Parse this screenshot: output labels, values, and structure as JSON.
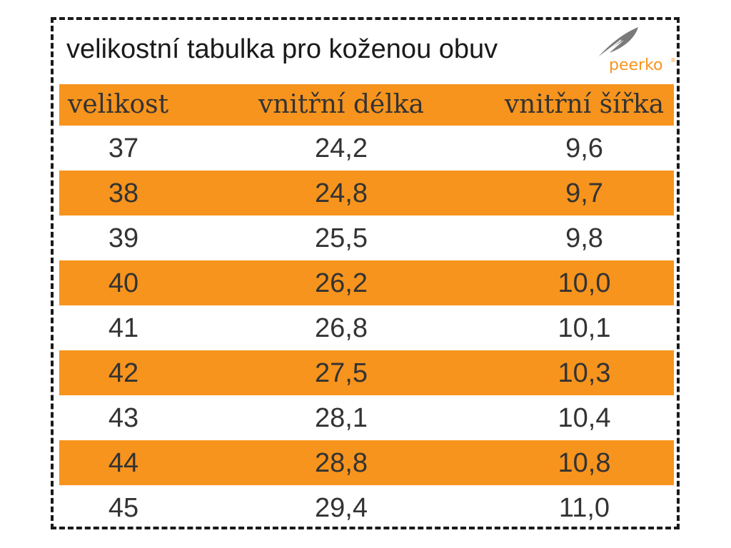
{
  "title": "velikostní tabulka pro koženou obuv",
  "logo": {
    "text": "peerko",
    "reg_mark": "®",
    "icon": "feather-icon",
    "color": "#f7941d"
  },
  "table": {
    "columns": [
      "velikost",
      "vnitřní délka",
      "vnitřní šířka"
    ],
    "rows": [
      [
        "37",
        "24,2",
        "9,6"
      ],
      [
        "38",
        "24,8",
        "9,7"
      ],
      [
        "39",
        "25,5",
        "9,8"
      ],
      [
        "40",
        "26,2",
        "10,0"
      ],
      [
        "41",
        "26,8",
        "10,1"
      ],
      [
        "42",
        "27,5",
        "10,3"
      ],
      [
        "43",
        "28,1",
        "10,4"
      ],
      [
        "44",
        "28,8",
        "10,8"
      ],
      [
        "45",
        "29,4",
        "11,0"
      ]
    ]
  },
  "colors": {
    "accent": "#f7941d",
    "text": "#333333",
    "border": "#1a1a1a"
  }
}
